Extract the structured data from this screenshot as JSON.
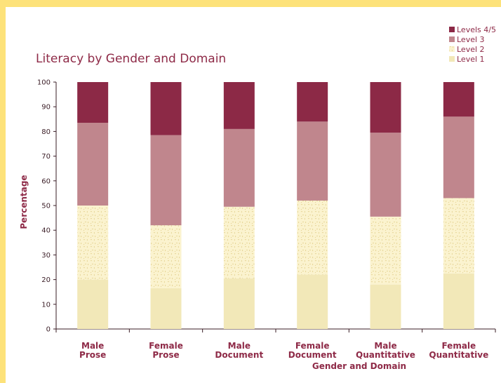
{
  "chart_data": {
    "type": "bar",
    "stacked": true,
    "title": "Literacy by Gender and Domain",
    "xlabel": "Gender and Domain",
    "ylabel": "Percentage",
    "ylim": [
      0,
      100
    ],
    "yticks": [
      0,
      10,
      20,
      30,
      40,
      50,
      60,
      70,
      80,
      90,
      100
    ],
    "categories": [
      [
        "Male",
        "Prose"
      ],
      [
        "Female",
        "Prose"
      ],
      [
        "Male",
        "Document"
      ],
      [
        "Female",
        "Document"
      ],
      [
        "Male",
        "Quantitative"
      ],
      [
        "Female",
        "Quantitative"
      ]
    ],
    "series": [
      {
        "name": "Level 1",
        "color": "#f2e8b8",
        "pattern": "solid",
        "values": [
          20,
          16.5,
          20.5,
          22,
          18,
          22.5
        ]
      },
      {
        "name": "Level 2",
        "color": "#fbf3cf",
        "pattern": "speckled",
        "values": [
          30,
          25.5,
          29,
          30,
          27.5,
          30.5
        ]
      },
      {
        "name": "Level 3",
        "color": "#c0868d",
        "pattern": "solid",
        "values": [
          33.5,
          36.5,
          31.5,
          32,
          34,
          33
        ]
      },
      {
        "name": "Levels 4/5",
        "color": "#8c2946",
        "pattern": "solid",
        "values": [
          16.5,
          21.5,
          19,
          16,
          20.5,
          14
        ]
      }
    ],
    "legend_order": [
      "Levels 4/5",
      "Level 3",
      "Level 2",
      "Level 1"
    ],
    "legend_position": "top-right",
    "grid": false
  }
}
